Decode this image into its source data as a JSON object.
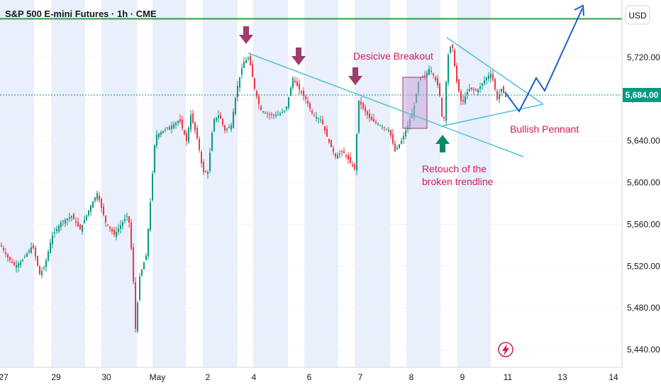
{
  "chart_data": {
    "type": "candlestick",
    "title": "S&P 500 E-mini Futures · 1h · CME",
    "currency": "USD",
    "x_ticks": [
      "27",
      "29",
      "30",
      "May",
      "2",
      "4",
      "6",
      "7",
      "8",
      "9",
      "11",
      "13",
      "14"
    ],
    "y_ticks": [
      {
        "label": "5,720.00",
        "value": 5720
      },
      {
        "label": "5,680.00",
        "value": 5680
      },
      {
        "label": "5,640.00",
        "value": 5640
      },
      {
        "label": "5,600.00",
        "value": 5600
      },
      {
        "label": "5,560.00",
        "value": 5560
      },
      {
        "label": "5,520.00",
        "value": 5520
      },
      {
        "label": "5,480.00",
        "value": 5480
      },
      {
        "label": "5,440.00",
        "value": 5440
      }
    ],
    "ylim": [
      5428,
      5758
    ],
    "last_price": {
      "label": "5,684.00",
      "value": 5684
    },
    "target_level": 5757,
    "annotations": {
      "breakout": "Desicive Breakout",
      "pennant": "Bullish Pennant",
      "retouch_line1": "Retouch of the",
      "retouch_line2": "broken trendline"
    },
    "colors": {
      "up": "#089981",
      "down": "#f23645",
      "trendline": "#4ec3d6",
      "arrow": "#9c3d6b",
      "arrow_up": "#0b8a6b",
      "projection": "#1e5fc4",
      "target_line": "#2e9e3a",
      "session_shade": "#e9effb",
      "breakout_box": "#c8a6d8"
    },
    "icons": [
      "arrow-down-icon",
      "arrow-up-icon",
      "lightning-icon"
    ]
  }
}
